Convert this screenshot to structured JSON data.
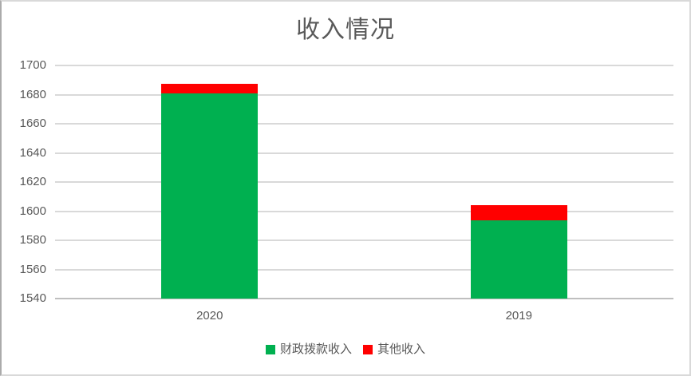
{
  "chart_data": {
    "type": "bar",
    "stacked": true,
    "title": "收入情况",
    "categories": [
      "2020",
      "2019"
    ],
    "series": [
      {
        "name": "财政拨款收入",
        "color": "#00B050",
        "values": [
          1681,
          1593.5
        ]
      },
      {
        "name": "其他收入",
        "color": "#FF0000",
        "values": [
          6.3,
          10.5
        ]
      }
    ],
    "totals": [
      1687.3,
      1604
    ],
    "ylim": [
      1540,
      1700
    ],
    "ytick_step": 20,
    "ytick_labels": [
      "1540",
      "1560",
      "1580",
      "1600",
      "1620",
      "1640",
      "1660",
      "1680",
      "1700"
    ],
    "xlabel": "",
    "ylabel": "",
    "grid": true,
    "legend_position": "bottom"
  },
  "colors": {
    "series_green": "#00B050",
    "series_red": "#FF0000",
    "gridline": "#D9D9D9",
    "axis_line": "#BFBFBF",
    "text": "#595959",
    "frame_border": "#D9D9D9"
  }
}
